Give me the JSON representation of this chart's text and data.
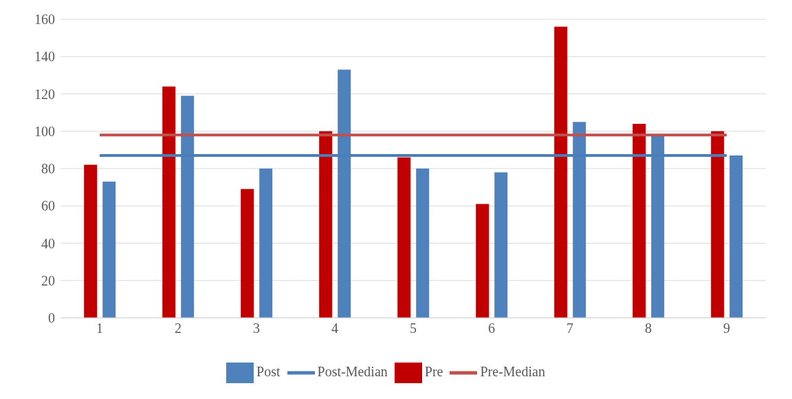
{
  "chart_data": {
    "type": "bar",
    "categories": [
      "1",
      "2",
      "3",
      "4",
      "5",
      "6",
      "7",
      "8",
      "9"
    ],
    "series": [
      {
        "name": "Pre",
        "color": "#c00000",
        "values": [
          82,
          124,
          69,
          100,
          86,
          61,
          156,
          104,
          100
        ]
      },
      {
        "name": "Post",
        "color": "#4f81bd",
        "values": [
          73,
          119,
          80,
          133,
          80,
          78,
          105,
          98,
          87
        ]
      },
      {
        "name": "Pre-Median",
        "type": "line",
        "color": "#c0504d",
        "values": [
          98,
          98,
          98,
          98,
          98,
          98,
          98,
          98,
          98
        ]
      },
      {
        "name": "Post-Median",
        "type": "line",
        "color": "#4a7ebb",
        "values": [
          87,
          87,
          87,
          87,
          87,
          87,
          87,
          87,
          87
        ]
      }
    ],
    "ylim": [
      0,
      160
    ],
    "yticks": [
      0,
      20,
      40,
      60,
      80,
      100,
      120,
      140,
      160
    ],
    "grid": "y",
    "legend": "bottom",
    "marker": "none",
    "line_style": "solid"
  }
}
